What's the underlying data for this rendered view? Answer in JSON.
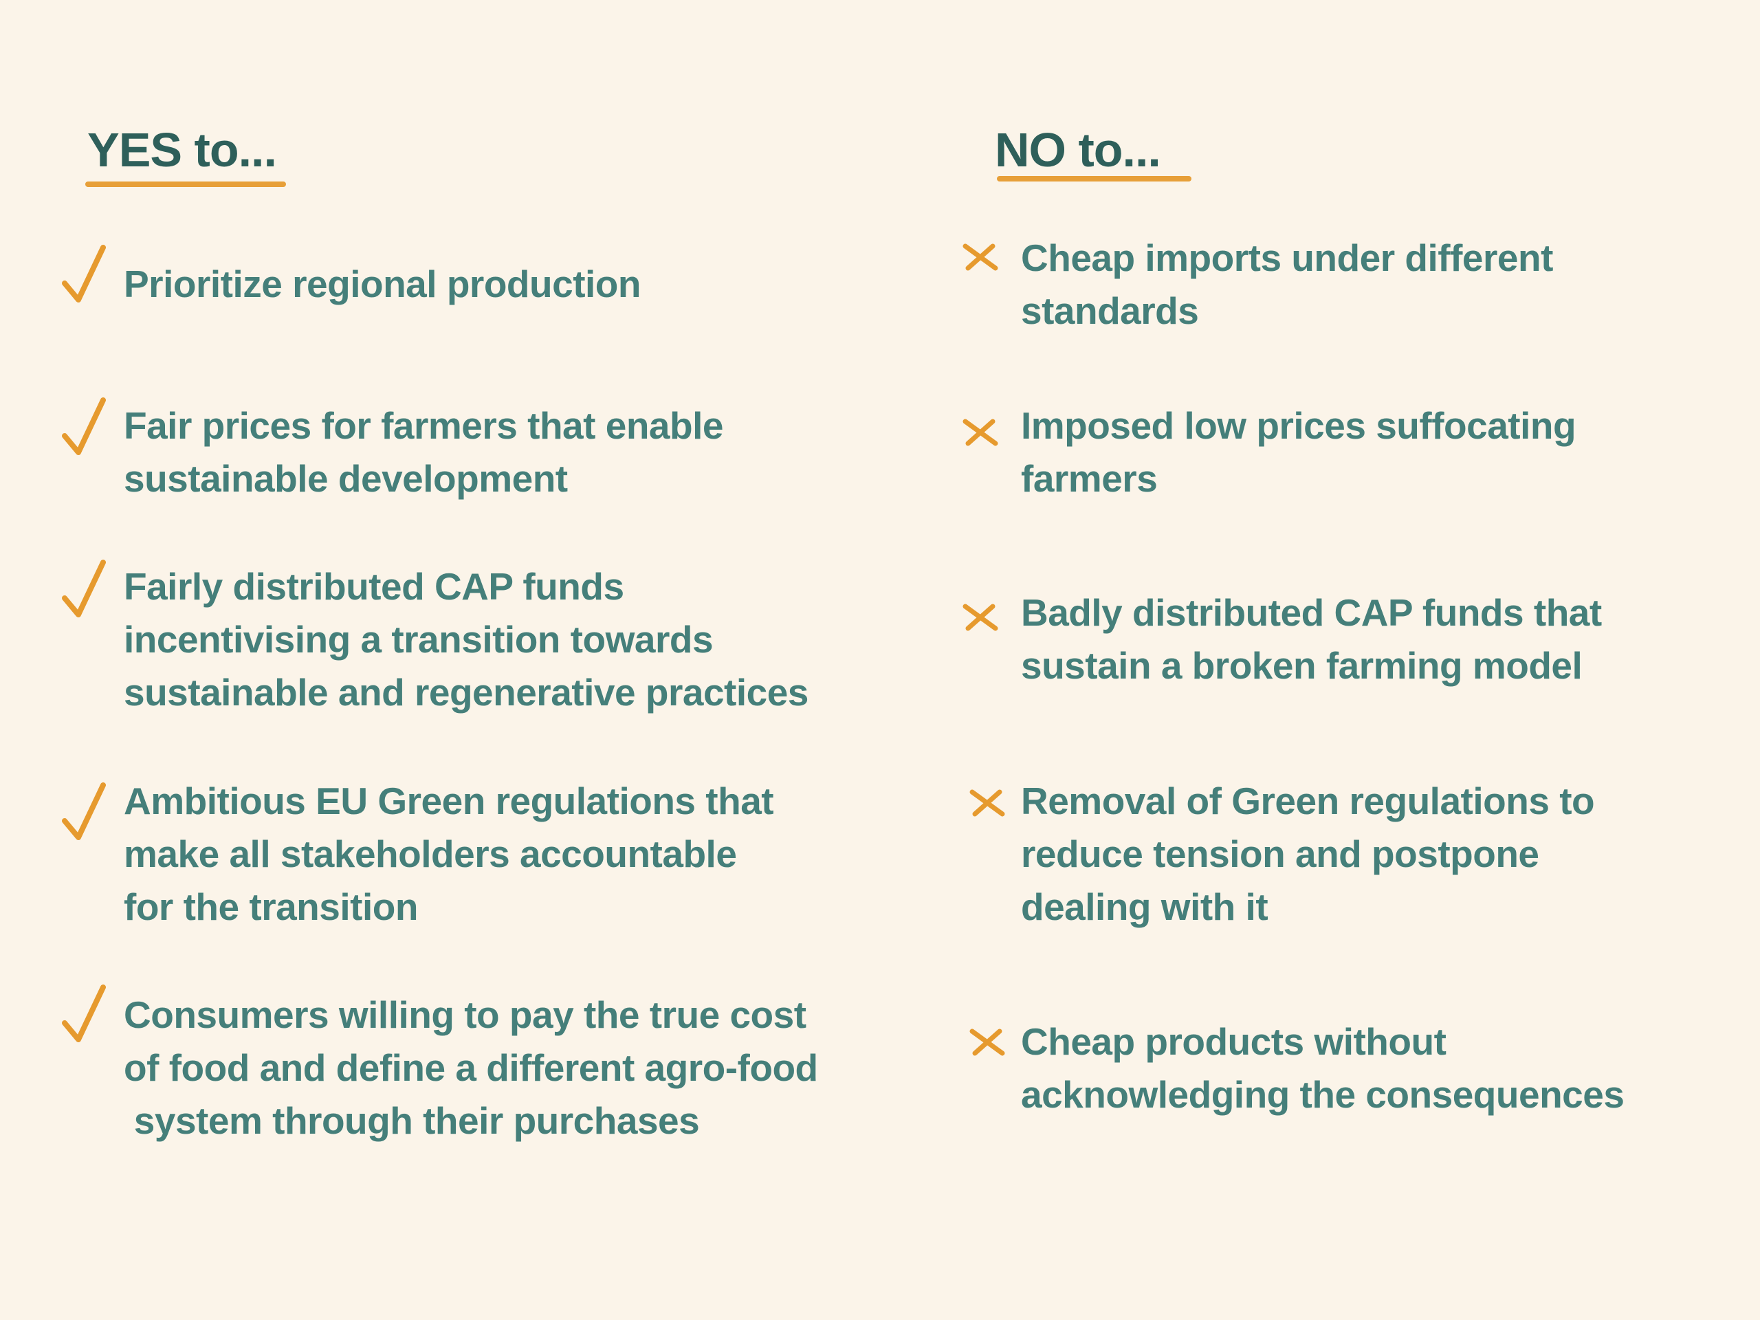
{
  "colors": {
    "background": "#FBF4E9",
    "heading": "#2E5F5A",
    "text": "#457F7A",
    "accent": "#E69A2E"
  },
  "yes_column": {
    "heading": "YES to...",
    "icon": "check-icon",
    "items": [
      {
        "lines": [
          "Prioritize regional production"
        ]
      },
      {
        "lines": [
          "Fair prices for farmers that enable",
          "sustainable development"
        ]
      },
      {
        "lines": [
          "Fairly distributed CAP funds",
          "incentivising a transition towards",
          "sustainable and regenerative practices"
        ]
      },
      {
        "lines": [
          "Ambitious EU Green regulations that",
          "make all stakeholders accountable",
          "for the transition"
        ]
      },
      {
        "lines": [
          "Consumers willing to pay the true cost",
          "of food and define a different agro-food",
          " system through their purchases"
        ]
      }
    ]
  },
  "no_column": {
    "heading": "NO to...",
    "icon": "cross-icon",
    "items": [
      {
        "lines": [
          "Cheap imports under different",
          "standards"
        ]
      },
      {
        "lines": [
          "Imposed low prices suffocating",
          "farmers"
        ]
      },
      {
        "lines": [
          "Badly distributed CAP funds that",
          "sustain a broken farming model"
        ]
      },
      {
        "lines": [
          "Removal of Green regulations to",
          "reduce tension and postpone",
          "dealing with it"
        ]
      },
      {
        "lines": [
          "Cheap products without",
          "acknowledging the consequences"
        ]
      }
    ]
  }
}
